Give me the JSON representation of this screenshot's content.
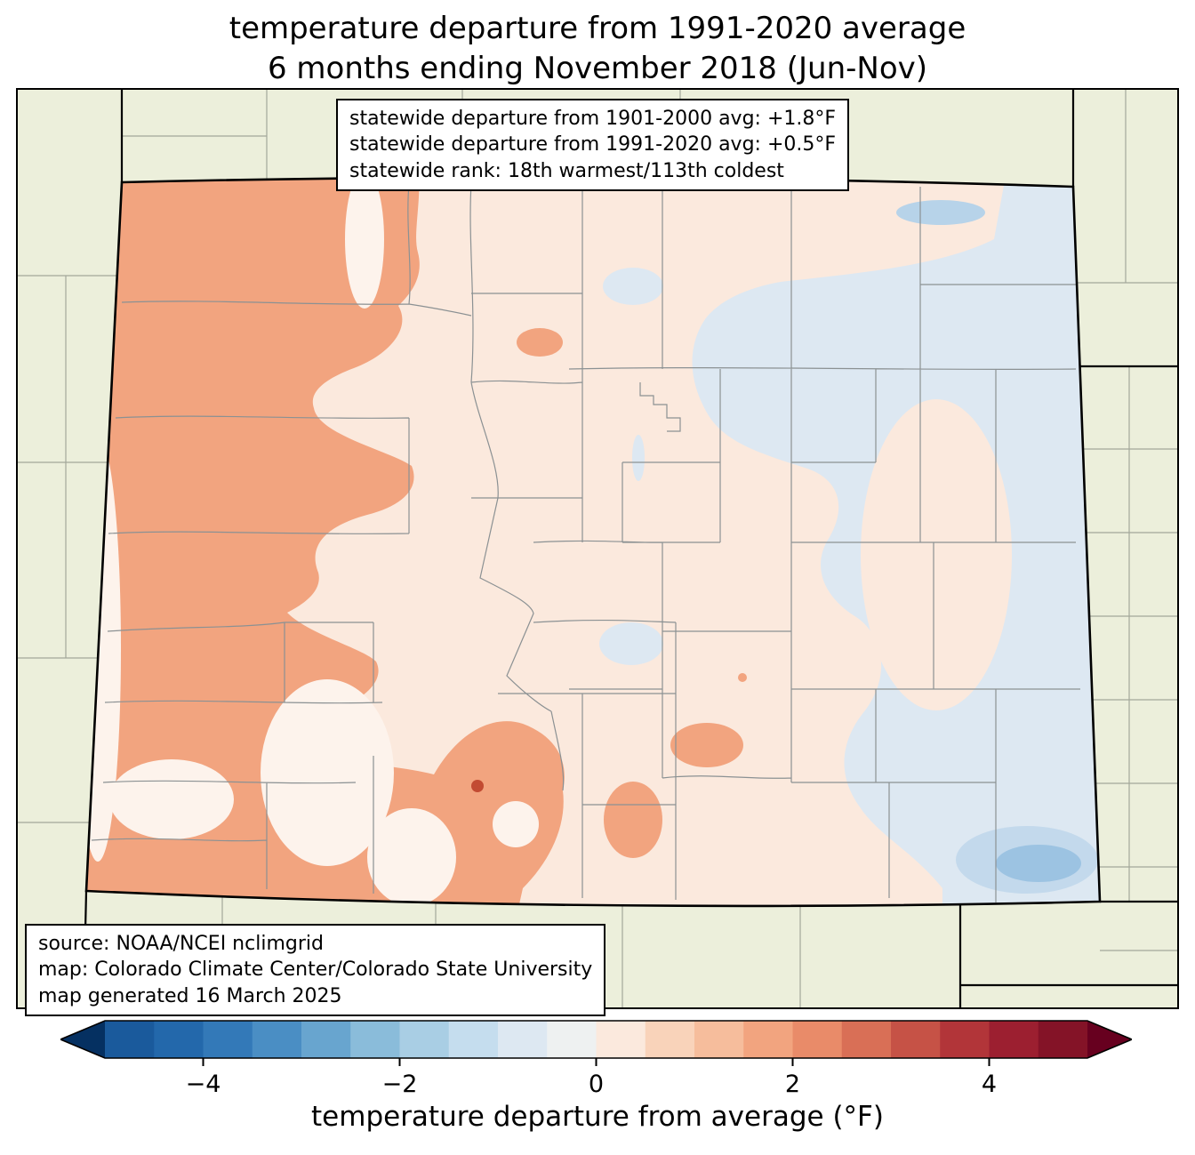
{
  "title": {
    "line1": "temperature departure from 1991-2020 average",
    "line2": "6 months ending November 2018 (Jun-Nov)"
  },
  "stats_box": {
    "line1": "statewide departure from 1901-2000 avg: +1.8°F",
    "line2": "statewide departure from 1991-2020 avg: +0.5°F",
    "line3": "statewide rank: 18th warmest/113th coldest"
  },
  "source_box": {
    "line1": "source: NOAA/NCEI nclimgrid",
    "line2": "map: Colorado Climate Center/Colorado State University",
    "line3": "map generated 16 March 2025"
  },
  "colorbar": {
    "label": "temperature departure from average (°F)",
    "tick_labels": [
      "−4",
      "−2",
      "0",
      "2",
      "4"
    ],
    "tick_values": [
      -4,
      -2,
      0,
      2,
      4
    ],
    "range": [
      -5,
      5
    ],
    "segment_colors": [
      "#1a5a9c",
      "#2368ab",
      "#3379b8",
      "#4a8ec4",
      "#68a5cf",
      "#8abcda",
      "#a9cee4",
      "#c5ddee",
      "#dde8f2",
      "#eef1f1",
      "#fbe9dd",
      "#f9d3ba",
      "#f6bd9c",
      "#f2a47f",
      "#e98b69",
      "#d96f56",
      "#c65246",
      "#b23539",
      "#9c1f30",
      "#841327"
    ],
    "arrow_left_color": "#053061",
    "arrow_right_color": "#67001f"
  },
  "map": {
    "region": "Colorado",
    "colors": {
      "background": "#ecefdb",
      "neutral": "#fbe9dd",
      "warm": "#f2a47f",
      "pale": "#fdf3ec",
      "cool": "#dde8f2",
      "cool_edge": "#c3d9ec",
      "cool_deep": "#9cc3e2",
      "cool_streak": "#b7d3e9",
      "hot": "#c24b32",
      "county_line": "#8b9193",
      "outside_county_line": "#a3a89a",
      "state_line": "#000000"
    }
  }
}
